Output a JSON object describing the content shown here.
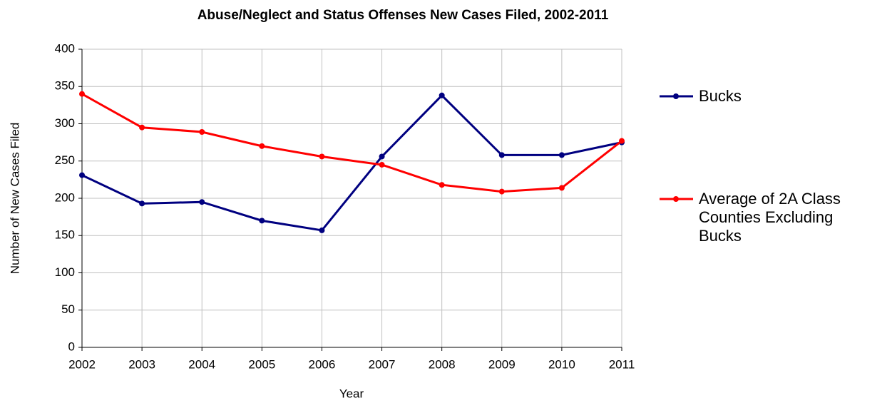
{
  "chart_data": {
    "type": "line",
    "title": "Abuse/Neglect and Status Offenses New Cases Filed, 2002-2011",
    "x_label": "Year",
    "y_label": "Number of New Cases Filed",
    "x": [
      2002,
      2003,
      2004,
      2005,
      2006,
      2007,
      2008,
      2009,
      2010,
      2011
    ],
    "xlim": [
      2002,
      2011
    ],
    "xticks": [
      2002,
      2003,
      2004,
      2005,
      2006,
      2007,
      2008,
      2009,
      2010,
      2011
    ],
    "ylim": [
      0,
      400
    ],
    "yticks": [
      0,
      50,
      100,
      150,
      200,
      250,
      300,
      350,
      400
    ],
    "grid": true,
    "legend": "right",
    "series": [
      {
        "name": "Bucks",
        "color": "#000080",
        "values": [
          231,
          193,
          195,
          170,
          157,
          256,
          338,
          258,
          258,
          275
        ]
      },
      {
        "name": "Average of 2A Class Counties Excluding Bucks",
        "color": "#ff0000",
        "values": [
          340,
          295,
          289,
          270,
          256,
          245,
          218,
          209,
          214,
          277
        ]
      }
    ]
  }
}
